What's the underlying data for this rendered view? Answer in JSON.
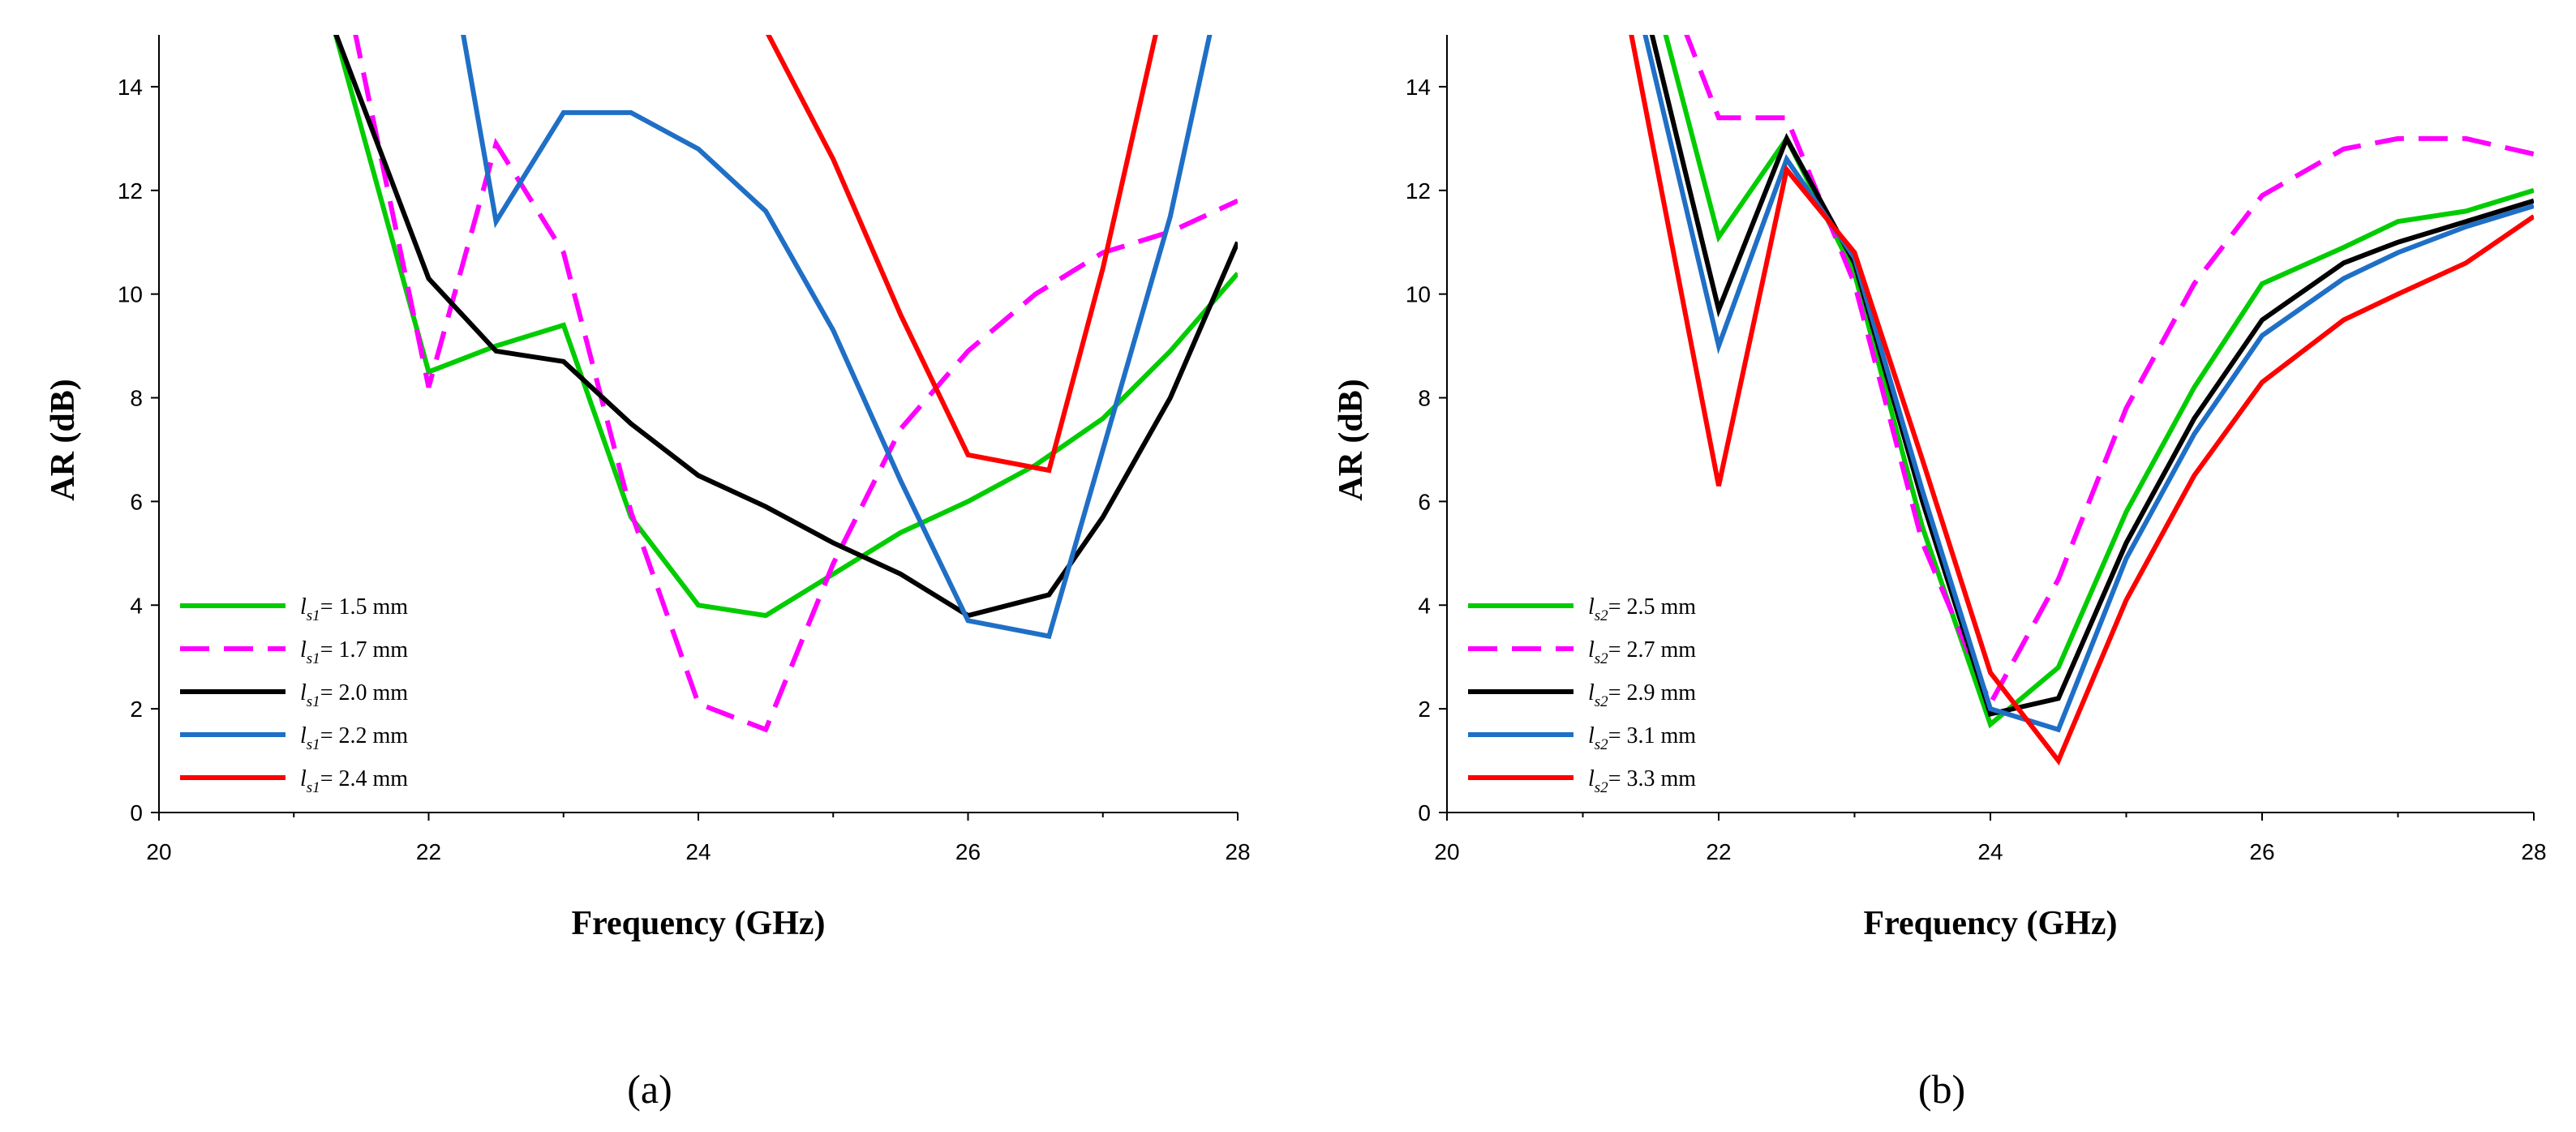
{
  "chart_data": [
    {
      "type": "line",
      "panel_label": "(a)",
      "xlabel": "Frequency (GHz)",
      "ylabel": "AR (dB)",
      "xlim": [
        20,
        28
      ],
      "ylim": [
        0,
        15
      ],
      "xticks": [
        "20",
        "22",
        "24",
        "26",
        "28"
      ],
      "yticks": [
        "0",
        "2",
        "4",
        "6",
        "8",
        "10",
        "12",
        "14"
      ],
      "legend_position": "bottom-left",
      "series": [
        {
          "legend_symbol": "l",
          "legend_sub": "s1",
          "legend_value": "= 1.5 mm",
          "color": "#00cc00",
          "dashed": false,
          "x": [
            21.3,
            22.0,
            22.5,
            23.0,
            23.5,
            24.0,
            24.5,
            25.0,
            25.5,
            26.0,
            26.5,
            27.0,
            27.5,
            28.0
          ],
          "y": [
            15.1,
            8.5,
            9.0,
            9.4,
            5.7,
            4.0,
            3.8,
            4.6,
            5.4,
            6.0,
            6.7,
            7.6,
            8.9,
            10.4
          ]
        },
        {
          "legend_symbol": "l",
          "legend_sub": "s1",
          "legend_value": "= 1.7 mm",
          "color": "#ff00ff",
          "dashed": true,
          "x": [
            21.45,
            22.0,
            22.5,
            23.0,
            23.5,
            24.0,
            24.5,
            25.0,
            25.5,
            26.0,
            26.5,
            27.0,
            27.5,
            28.0
          ],
          "y": [
            15.1,
            8.2,
            12.9,
            10.8,
            5.8,
            2.1,
            1.6,
            4.8,
            7.4,
            8.9,
            10.0,
            10.8,
            11.2,
            11.8
          ]
        },
        {
          "legend_symbol": "l",
          "legend_sub": "s1",
          "legend_value": "= 2.0 mm",
          "color": "#000000",
          "dashed": false,
          "x": [
            21.3,
            22.0,
            22.5,
            23.0,
            23.5,
            24.0,
            24.5,
            25.0,
            25.5,
            26.0,
            26.6,
            27.0,
            27.5,
            28.0
          ],
          "y": [
            15.1,
            10.3,
            8.9,
            8.7,
            7.5,
            6.5,
            5.9,
            5.2,
            4.6,
            3.8,
            4.2,
            5.7,
            8.0,
            11.0
          ]
        },
        {
          "legend_symbol": "l",
          "legend_sub": "s1",
          "legend_value": "= 2.2 mm",
          "color": "#1f6fc6",
          "dashed": false,
          "x": [
            22.25,
            22.5,
            23.0,
            23.5,
            24.0,
            24.5,
            25.0,
            25.5,
            26.0,
            26.6,
            27.0,
            27.5,
            27.8
          ],
          "y": [
            15.1,
            11.4,
            13.5,
            13.5,
            12.8,
            11.6,
            9.3,
            6.4,
            3.7,
            3.4,
            7.0,
            11.5,
            15.1
          ]
        },
        {
          "legend_symbol": "l",
          "legend_sub": "s1",
          "legend_value": "= 2.4 mm",
          "color": "#ff0000",
          "dashed": false,
          "x": [
            24.5,
            25.0,
            25.5,
            26.0,
            26.6,
            27.0,
            27.4
          ],
          "y": [
            15.1,
            12.6,
            9.6,
            6.9,
            6.6,
            10.5,
            15.1
          ]
        }
      ]
    },
    {
      "type": "line",
      "panel_label": "(b)",
      "xlabel": "Frequency (GHz)",
      "ylabel": "AR (dB)",
      "xlim": [
        20,
        28
      ],
      "ylim": [
        0,
        15
      ],
      "xticks": [
        "20",
        "22",
        "24",
        "26",
        "28"
      ],
      "yticks": [
        "0",
        "2",
        "4",
        "6",
        "8",
        "10",
        "12",
        "14"
      ],
      "legend_position": "bottom-left",
      "series": [
        {
          "legend_symbol": "l",
          "legend_sub": "s2",
          "legend_value": "= 2.5 mm",
          "color": "#00cc00",
          "dashed": false,
          "x": [
            21.6,
            22.0,
            22.5,
            23.0,
            23.5,
            24.0,
            24.5,
            25.0,
            25.5,
            26.0,
            26.6,
            27.0,
            27.5,
            28.0
          ],
          "y": [
            15.1,
            11.1,
            13.0,
            10.4,
            5.5,
            1.7,
            2.8,
            5.8,
            8.2,
            10.2,
            10.9,
            11.4,
            11.6,
            12.0
          ]
        },
        {
          "legend_symbol": "l",
          "legend_sub": "s2",
          "legend_value": "= 2.7 mm",
          "color": "#ff00ff",
          "dashed": true,
          "x": [
            21.75,
            22.0,
            22.5,
            23.0,
            23.5,
            24.0,
            24.5,
            25.0,
            25.5,
            26.0,
            26.6,
            27.0,
            27.5,
            28.0
          ],
          "y": [
            15.1,
            13.4,
            13.4,
            10.2,
            5.2,
            2.1,
            4.5,
            7.8,
            10.2,
            11.9,
            12.8,
            13.0,
            13.0,
            12.7
          ]
        },
        {
          "legend_symbol": "l",
          "legend_sub": "s2",
          "legend_value": "= 2.9 mm",
          "color": "#000000",
          "dashed": false,
          "x": [
            21.5,
            22.0,
            22.5,
            23.0,
            23.5,
            24.0,
            24.5,
            25.0,
            25.5,
            26.0,
            26.6,
            27.0,
            27.5,
            28.0
          ],
          "y": [
            15.1,
            9.7,
            13.0,
            10.6,
            6.0,
            1.9,
            2.2,
            5.2,
            7.6,
            9.5,
            10.6,
            11.0,
            11.4,
            11.8
          ]
        },
        {
          "legend_symbol": "l",
          "legend_sub": "s2",
          "legend_value": "= 3.1 mm",
          "color": "#1f6fc6",
          "dashed": false,
          "x": [
            21.45,
            22.0,
            22.5,
            23.0,
            23.5,
            24.0,
            24.5,
            25.0,
            25.5,
            26.0,
            26.6,
            27.0,
            27.5,
            28.0
          ],
          "y": [
            15.1,
            9.0,
            12.6,
            10.7,
            6.2,
            2.0,
            1.6,
            4.9,
            7.3,
            9.2,
            10.3,
            10.8,
            11.3,
            11.7
          ]
        },
        {
          "legend_symbol": "l",
          "legend_sub": "s2",
          "legend_value": "= 3.3 mm",
          "color": "#ff0000",
          "dashed": false,
          "x": [
            21.35,
            22.0,
            22.5,
            23.0,
            23.5,
            24.0,
            24.5,
            25.0,
            25.5,
            26.0,
            26.6,
            27.0,
            27.5,
            28.0
          ],
          "y": [
            15.1,
            6.3,
            12.4,
            10.8,
            6.8,
            2.7,
            1.0,
            4.1,
            6.5,
            8.3,
            9.5,
            10.0,
            10.6,
            11.5
          ]
        }
      ]
    }
  ]
}
